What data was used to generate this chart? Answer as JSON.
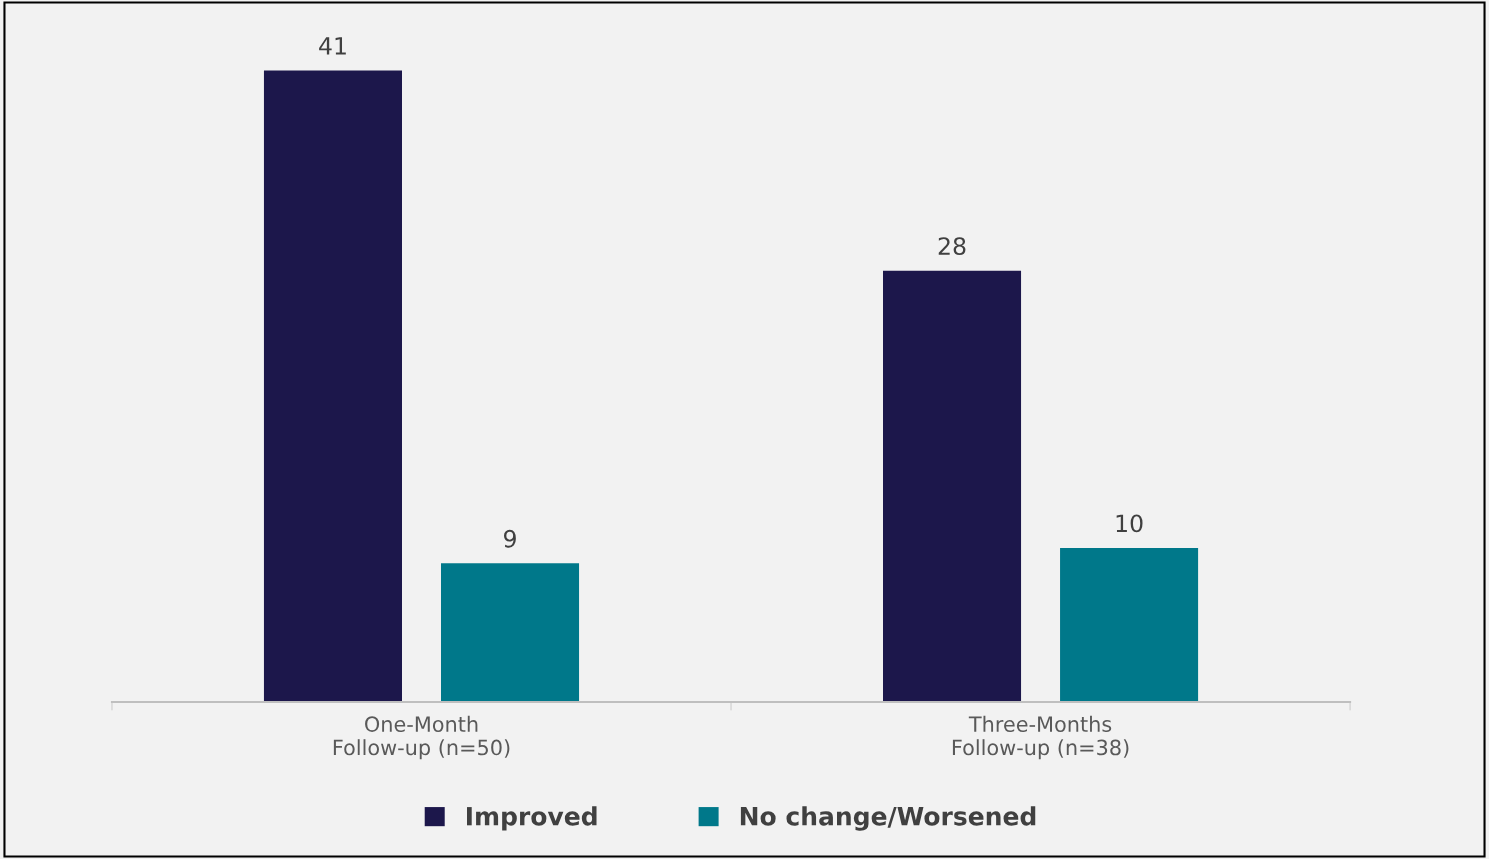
{
  "chart_data": {
    "type": "bar",
    "categories": [
      "One-Month\nFollow-up (n=50)",
      "Three-Months\nFollow-up (n=38)"
    ],
    "series": [
      {
        "name": "Improved",
        "color": "#1c174b",
        "values": [
          41,
          28
        ]
      },
      {
        "name": "No change/Worsened",
        "color": "#00788a",
        "values": [
          9,
          10
        ]
      }
    ],
    "data_labels": true,
    "legend": "bottom",
    "grid": false
  }
}
